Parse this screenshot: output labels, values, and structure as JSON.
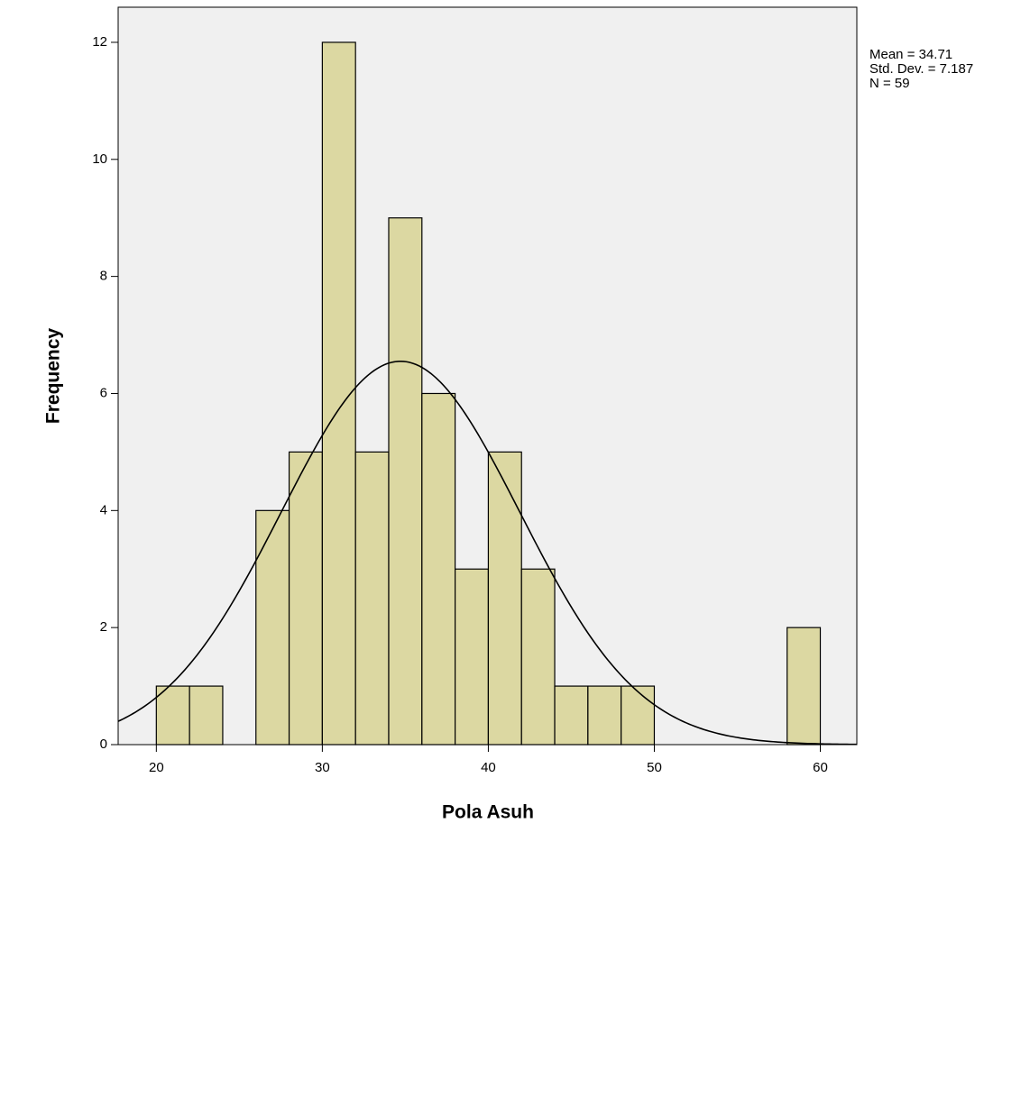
{
  "chart_data": {
    "type": "histogram",
    "x_label": "Pola Asuh",
    "y_label": "Frequency",
    "bins": [
      20,
      22,
      24,
      26,
      28,
      30,
      32,
      34,
      36,
      38,
      40,
      42,
      44,
      46,
      48,
      50,
      52,
      54,
      56,
      58,
      60
    ],
    "counts": [
      1,
      1,
      0,
      4,
      5,
      12,
      5,
      9,
      6,
      3,
      5,
      3,
      1,
      1,
      1,
      0,
      0,
      0,
      0,
      2
    ],
    "color": "#d8d394",
    "xlim": [
      17.7,
      62.2
    ],
    "xticks": [
      20,
      30,
      40,
      50,
      60
    ],
    "ylim": [
      0,
      12.6
    ],
    "yticks": [
      0,
      2,
      4,
      6,
      8,
      10,
      12
    ],
    "normal_curve": true,
    "stats": [
      {
        "value": 34.71,
        "label": "Mean = 34.71"
      },
      {
        "value": 7.187,
        "label": "Std. Dev. = 7.187"
      },
      {
        "value": 59,
        "label": "N = 59"
      }
    ]
  }
}
